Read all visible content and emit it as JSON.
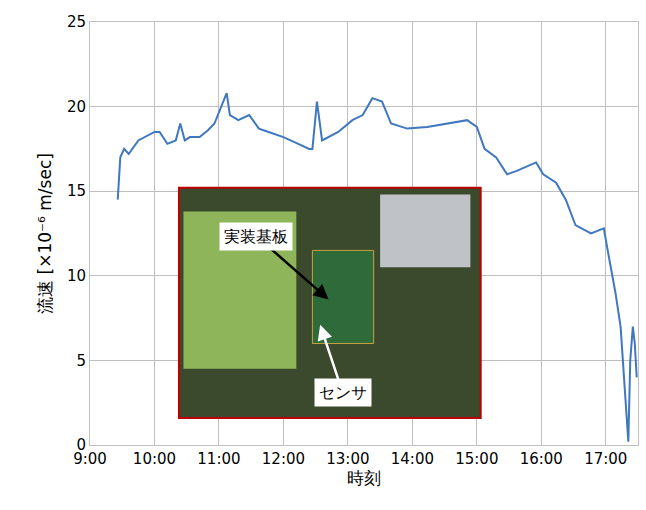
{
  "chart_data": {
    "type": "line",
    "x_label": "時刻",
    "y_label": "流速 [×10⁻⁶ m/sec]",
    "x": [
      9.43,
      9.47,
      9.53,
      9.6,
      9.75,
      9.9,
      10.0,
      10.08,
      10.2,
      10.33,
      10.4,
      10.47,
      10.55,
      10.7,
      10.83,
      10.93,
      11.08,
      11.12,
      11.17,
      11.3,
      11.47,
      11.62,
      11.77,
      12.0,
      12.23,
      12.4,
      12.45,
      12.52,
      12.6,
      12.85,
      13.07,
      13.23,
      13.38,
      13.53,
      13.67,
      13.92,
      14.23,
      14.53,
      14.85,
      15.0,
      15.12,
      15.3,
      15.47,
      15.62,
      15.92,
      16.03,
      16.23,
      16.38,
      16.53,
      16.77,
      16.97,
      17.03,
      17.15,
      17.23,
      17.3,
      17.35,
      17.38,
      17.42,
      17.45,
      17.48
    ],
    "values": [
      14.5,
      17.0,
      17.5,
      17.2,
      18.0,
      18.3,
      18.5,
      18.5,
      17.8,
      18.0,
      19.0,
      18.0,
      18.2,
      18.2,
      18.6,
      19.0,
      20.5,
      20.8,
      19.5,
      19.2,
      19.5,
      18.7,
      18.5,
      18.2,
      17.8,
      17.5,
      17.5,
      20.3,
      18.0,
      18.5,
      19.2,
      19.5,
      20.5,
      20.3,
      19.0,
      18.7,
      18.8,
      19.0,
      19.2,
      18.8,
      17.5,
      17.0,
      16.0,
      16.2,
      16.7,
      16.0,
      15.5,
      14.5,
      13.0,
      12.5,
      12.8,
      11.5,
      9.0,
      7.0,
      3.0,
      0.2,
      5.0,
      7.0,
      6.0,
      4.0
    ],
    "color": "#3f78bf",
    "xlim": [
      9,
      17.5
    ],
    "xticks": [
      {
        "value": 9,
        "label": "9:00"
      },
      {
        "value": 10,
        "label": "10:00"
      },
      {
        "value": 11,
        "label": "11:00"
      },
      {
        "value": 12,
        "label": "12:00"
      },
      {
        "value": 13,
        "label": "13:00"
      },
      {
        "value": 14,
        "label": "14:00"
      },
      {
        "value": 15,
        "label": "15:00"
      },
      {
        "value": 16,
        "label": "16:00"
      },
      {
        "value": 17,
        "label": "17:00"
      }
    ],
    "ylim": [
      0,
      25
    ],
    "yticks": [
      0,
      5,
      10,
      15,
      20,
      25
    ],
    "grid": true,
    "annotations": [
      {
        "text": "実装基板"
      },
      {
        "text": "センサ"
      }
    ]
  }
}
